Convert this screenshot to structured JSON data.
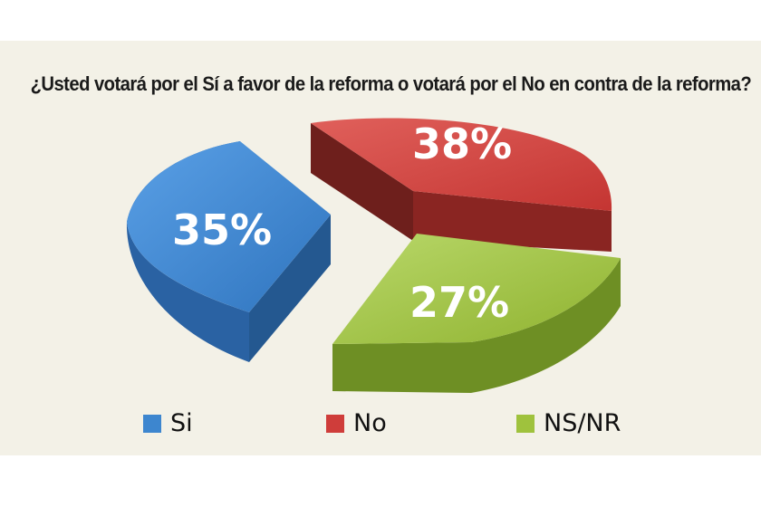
{
  "chart_data": {
    "type": "pie",
    "title": "¿Usted votará por el Sí a favor de la reforma  o votará por el No en contra de la reforma?",
    "slices": [
      {
        "name": "Si",
        "value": 35,
        "label": "35%",
        "color": "#3d86cf"
      },
      {
        "name": "No",
        "value": 38,
        "label": "38%",
        "color": "#cf3d3a"
      },
      {
        "name": "NS/NR",
        "value": 27,
        "label": "27%",
        "color": "#9fc23d"
      }
    ],
    "legend_position": "bottom"
  }
}
